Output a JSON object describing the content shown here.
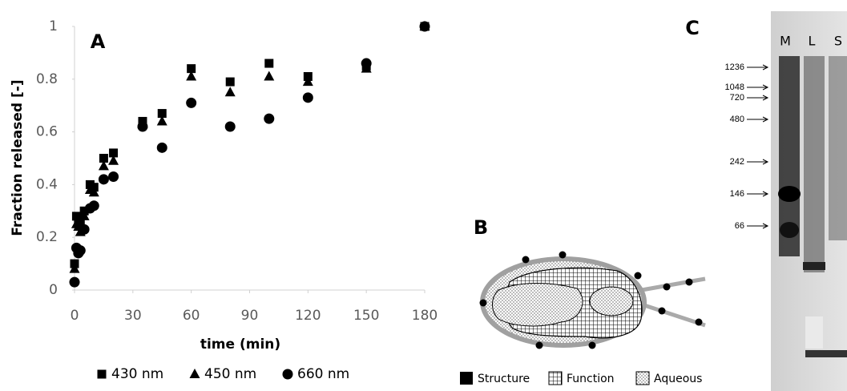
{
  "chart_data": {
    "type": "scatter",
    "panel_label": "A",
    "x_label": "time (min)",
    "y_label": "Fraction released [-]",
    "x": [
      0,
      1,
      2,
      3,
      5,
      8,
      10,
      15,
      20,
      35,
      45,
      60,
      80,
      100,
      120,
      150,
      180
    ],
    "series": [
      {
        "name": "430 nm",
        "color": "#000000",
        "marker": "square",
        "values": [
          0.1,
          0.28,
          0.27,
          0.25,
          0.3,
          0.4,
          0.39,
          0.5,
          0.52,
          0.64,
          0.67,
          0.84,
          0.79,
          0.86,
          0.81,
          0.85,
          1.0
        ]
      },
      {
        "name": "450 nm",
        "color": "#000000",
        "marker": "triangle",
        "values": [
          0.08,
          0.25,
          0.24,
          0.22,
          0.28,
          0.38,
          0.37,
          0.47,
          0.49,
          0.63,
          0.64,
          0.81,
          0.75,
          0.81,
          0.79,
          0.84,
          1.0
        ]
      },
      {
        "name": "660 nm",
        "color": "#000000",
        "marker": "circle",
        "values": [
          0.03,
          0.16,
          0.14,
          0.15,
          0.23,
          0.31,
          0.32,
          0.42,
          0.43,
          0.62,
          0.54,
          0.71,
          0.62,
          0.65,
          0.73,
          0.86,
          1.0
        ]
      }
    ],
    "xlim": [
      0,
      180
    ],
    "xticks": [
      0,
      30,
      60,
      90,
      120,
      150,
      180
    ],
    "ylim": [
      0,
      1
    ],
    "yticks": [
      0,
      0.2,
      0.4,
      0.6,
      0.8,
      1
    ],
    "grid": false,
    "legend": "bottom"
  },
  "diagram": {
    "panel_label": "B",
    "legend": [
      "Structure",
      "Function",
      "Aqueous"
    ]
  },
  "gel": {
    "panel_label": "C",
    "lanes": [
      "M",
      "L",
      "S"
    ],
    "markers": [
      "1236",
      "1048",
      "720",
      "480",
      "242",
      "146",
      "66"
    ]
  }
}
